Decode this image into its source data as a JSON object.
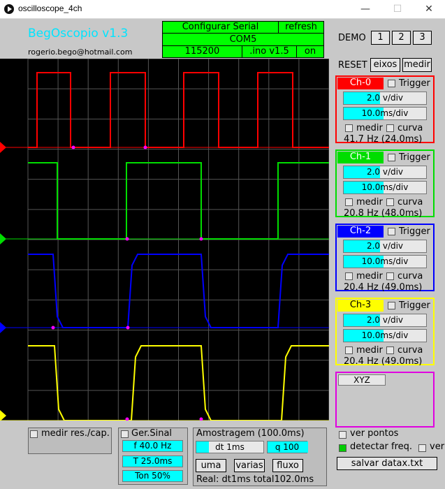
{
  "window": {
    "title": "oscilloscope_4ch",
    "minimize": "—",
    "maximize": "☐",
    "close": "✕"
  },
  "app": {
    "title": "BegOscopio v1.3",
    "email": "rogerio.bego@hotmail.com"
  },
  "serial": {
    "configurar": "Configurar Serial",
    "refresh": "refresh",
    "port": "COM5",
    "baud": "115200",
    "ino": ".ino v1.5",
    "on": "on"
  },
  "demo": {
    "label": "DEMO",
    "buttons": [
      "1",
      "2",
      "3"
    ]
  },
  "reset": {
    "label": "RESET",
    "eixos": "eixos",
    "medir": "medir"
  },
  "channels": [
    {
      "name": "Ch-0",
      "color": "#ff0000",
      "trigger": "Trigger",
      "vdiv": "2.0 v/div",
      "tdiv": "10.0ms/div",
      "medir": "medir",
      "curva": "curva",
      "freq": "41.7 Hz (24.0ms)"
    },
    {
      "name": "Ch-1",
      "color": "#00dd00",
      "trigger": "Trigger",
      "vdiv": "2.0 v/div",
      "tdiv": "10.0ms/div",
      "medir": "medir",
      "curva": "curva",
      "freq": "20.8 Hz (48.0ms)"
    },
    {
      "name": "Ch-2",
      "color": "#0000ff",
      "trigger": "Trigger",
      "vdiv": "2.0 v/div",
      "tdiv": "10.0ms/div",
      "medir": "medir",
      "curva": "curva",
      "freq": "20.4 Hz (49.0ms)"
    },
    {
      "name": "Ch-3",
      "color": "#ffff00",
      "trigger": "Trigger",
      "vdiv": "2.0 v/div",
      "tdiv": "10.0ms/div",
      "medir": "medir",
      "curva": "curva",
      "freq": "20.4 Hz (49.0ms)"
    }
  ],
  "xyz": {
    "label": "XYZ"
  },
  "measure": {
    "label": "medir res./cap."
  },
  "gen": {
    "label": "Ger.Sinal",
    "f": "f 40.0 Hz",
    "t": "T 25.0ms",
    "ton": "Ton 50%"
  },
  "sampling": {
    "title": "Amostragem (100.0ms)",
    "dt": "dt 1ms",
    "q": "q 100",
    "uma": "uma",
    "varias": "varias",
    "fluxo": "fluxo",
    "real": "Real: dt1ms  total102.0ms"
  },
  "options": {
    "ver_pontos": "ver pontos",
    "detectar_freq": "detectar freq.",
    "ver": "ver",
    "salvar": "salvar datax.txt"
  }
}
